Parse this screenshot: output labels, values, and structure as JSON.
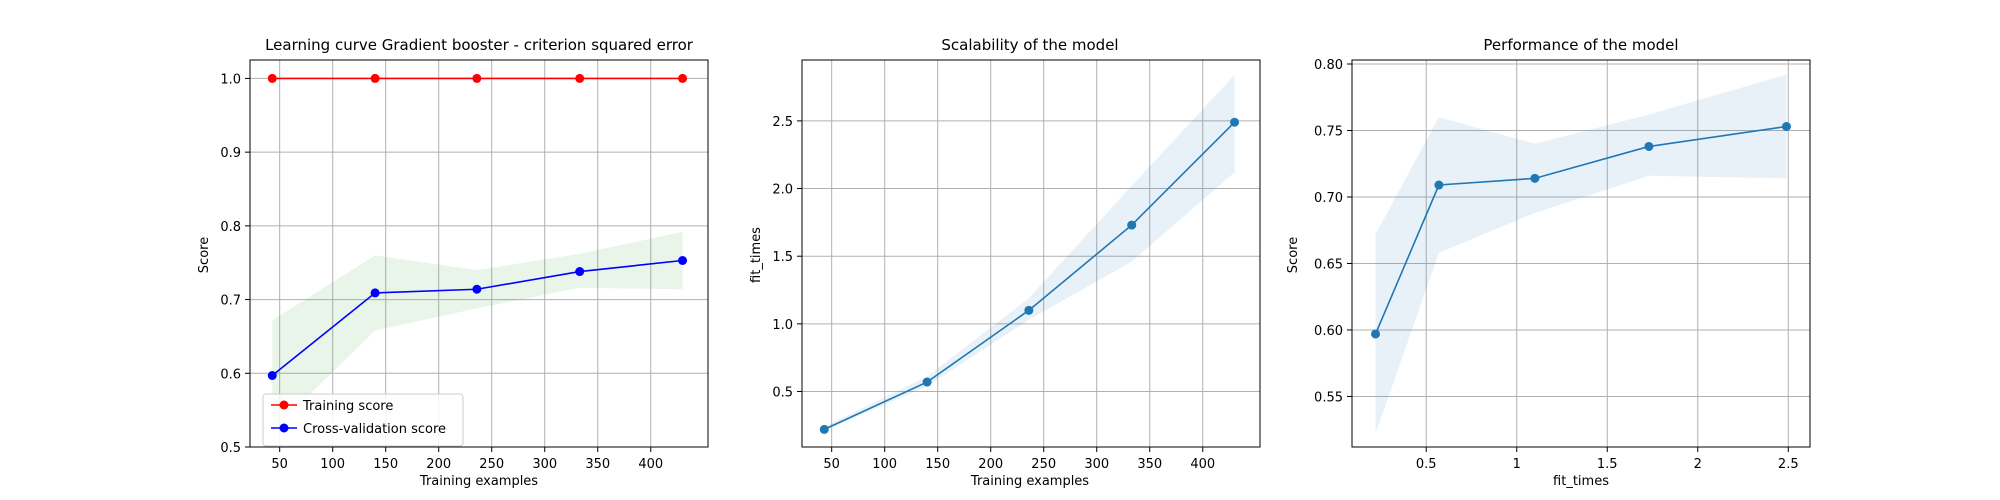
{
  "colors": {
    "training": "#ff0000",
    "cross_validation": "#0000ff",
    "tab_blue": "#1f77b4",
    "grid": "#b0b0b0"
  },
  "chart_data": [
    {
      "type": "line",
      "title": "Learning curve Gradient booster - criterion squared error",
      "xlabel": "Training examples",
      "ylabel": "Score",
      "xlim": [
        22,
        454
      ],
      "ylim": [
        0.5,
        1.025
      ],
      "xticks": [
        50,
        100,
        150,
        200,
        250,
        300,
        350,
        400
      ],
      "yticks": [
        0.5,
        0.6,
        0.7,
        0.8,
        0.9,
        1.0
      ],
      "y_tick_format": 1,
      "grid": true,
      "legend": "lower-left",
      "series": [
        {
          "name": "Training score",
          "color": "#ff0000",
          "x": [
            43,
            140,
            236,
            333,
            430
          ],
          "y": [
            1.0,
            1.0,
            1.0,
            1.0,
            1.0
          ],
          "band_low": [
            1.0,
            1.0,
            1.0,
            1.0,
            1.0
          ],
          "band_high": [
            1.0,
            1.0,
            1.0,
            1.0,
            1.0
          ],
          "band_color": "#ff0000"
        },
        {
          "name": "Cross-validation score",
          "color": "#0000ff",
          "x": [
            43,
            140,
            236,
            333,
            430
          ],
          "y": [
            0.597,
            0.709,
            0.714,
            0.738,
            0.753
          ],
          "band_low": [
            0.522,
            0.658,
            0.688,
            0.716,
            0.714
          ],
          "band_high": [
            0.672,
            0.76,
            0.74,
            0.762,
            0.792
          ],
          "band_color": "#2ca02c"
        }
      ]
    },
    {
      "type": "line",
      "title": "Scalability of the model",
      "xlabel": "Training examples",
      "ylabel": "fit_times",
      "xlim": [
        22,
        454
      ],
      "ylim": [
        0.09,
        2.95
      ],
      "xticks": [
        50,
        100,
        150,
        200,
        250,
        300,
        350,
        400
      ],
      "yticks": [
        0.5,
        1.0,
        1.5,
        2.0,
        2.5
      ],
      "y_tick_format": 1,
      "grid": true,
      "series": [
        {
          "color": "#1f77b4",
          "x": [
            43,
            140,
            236,
            333,
            430
          ],
          "y": [
            0.22,
            0.57,
            1.1,
            1.73,
            2.49
          ],
          "band_low": [
            0.21,
            0.54,
            1.03,
            1.46,
            2.12
          ],
          "band_high": [
            0.24,
            0.61,
            1.19,
            2.02,
            2.84
          ],
          "band_color": "#1f77b4"
        }
      ]
    },
    {
      "type": "line",
      "title": "Performance of the model",
      "xlabel": "fit_times",
      "ylabel": "Score",
      "xlim": [
        0.09,
        2.62
      ],
      "ylim": [
        0.512,
        0.803
      ],
      "xticks": [
        0.5,
        1.0,
        1.5,
        2.0,
        2.5
      ],
      "yticks": [
        0.55,
        0.6,
        0.65,
        0.7,
        0.75,
        0.8
      ],
      "y_tick_format": 2,
      "grid": true,
      "series": [
        {
          "color": "#1f77b4",
          "x": [
            0.22,
            0.57,
            1.1,
            1.73,
            2.49
          ],
          "y": [
            0.597,
            0.709,
            0.714,
            0.738,
            0.753
          ],
          "band_low": [
            0.522,
            0.658,
            0.688,
            0.716,
            0.714
          ],
          "band_high": [
            0.672,
            0.76,
            0.74,
            0.762,
            0.792
          ],
          "band_color": "#1f77b4"
        }
      ]
    }
  ]
}
